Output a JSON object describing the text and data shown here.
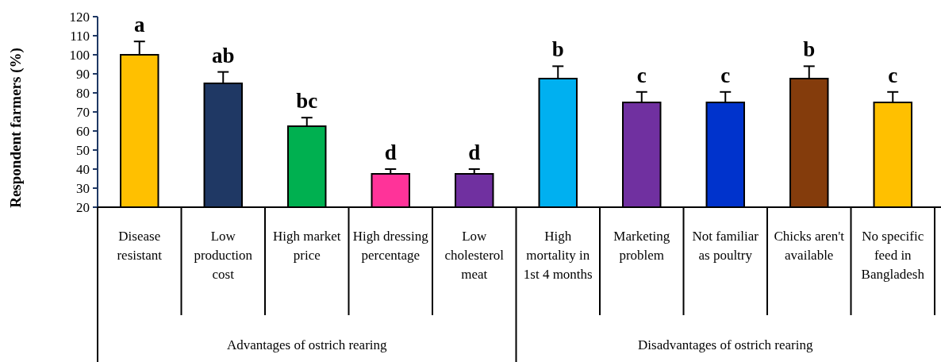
{
  "chart_data": {
    "type": "bar",
    "ylabel": "Respondent farmers (%)",
    "categories": [
      "Disease resistant",
      "Low production cost",
      "High market price",
      "High dressing percentage",
      "Low cholesterol meat",
      "High mortality in 1st 4 months",
      "Marketing problem",
      "Not familiar as poultry",
      "Chicks aren't available",
      "No specific feed in Bangladesh"
    ],
    "values": [
      100,
      85,
      62.5,
      37.5,
      37.5,
      87.5,
      75,
      75,
      87.5,
      75
    ],
    "errors": [
      7,
      6,
      4.5,
      2.5,
      2.5,
      6.5,
      5.5,
      5.5,
      6.5,
      5.5
    ],
    "colors": [
      "#ffc000",
      "#1f3864",
      "#00b050",
      "#ff3399",
      "#7030a0",
      "#00b0f0",
      "#7030a0",
      "#0033cc",
      "#843c0c",
      "#ffc000"
    ],
    "ylim": [
      20,
      120
    ],
    "yticks": [
      20,
      30,
      40,
      50,
      60,
      70,
      80,
      90,
      100,
      110,
      120
    ],
    "grid": false,
    "annotations": [
      "a",
      "ab",
      "bc",
      "d",
      "d",
      "b",
      "c",
      "c",
      "b",
      "c",
      "Advantages of ostrich rearing",
      "Disadvantages of ostrich rearing"
    ]
  }
}
